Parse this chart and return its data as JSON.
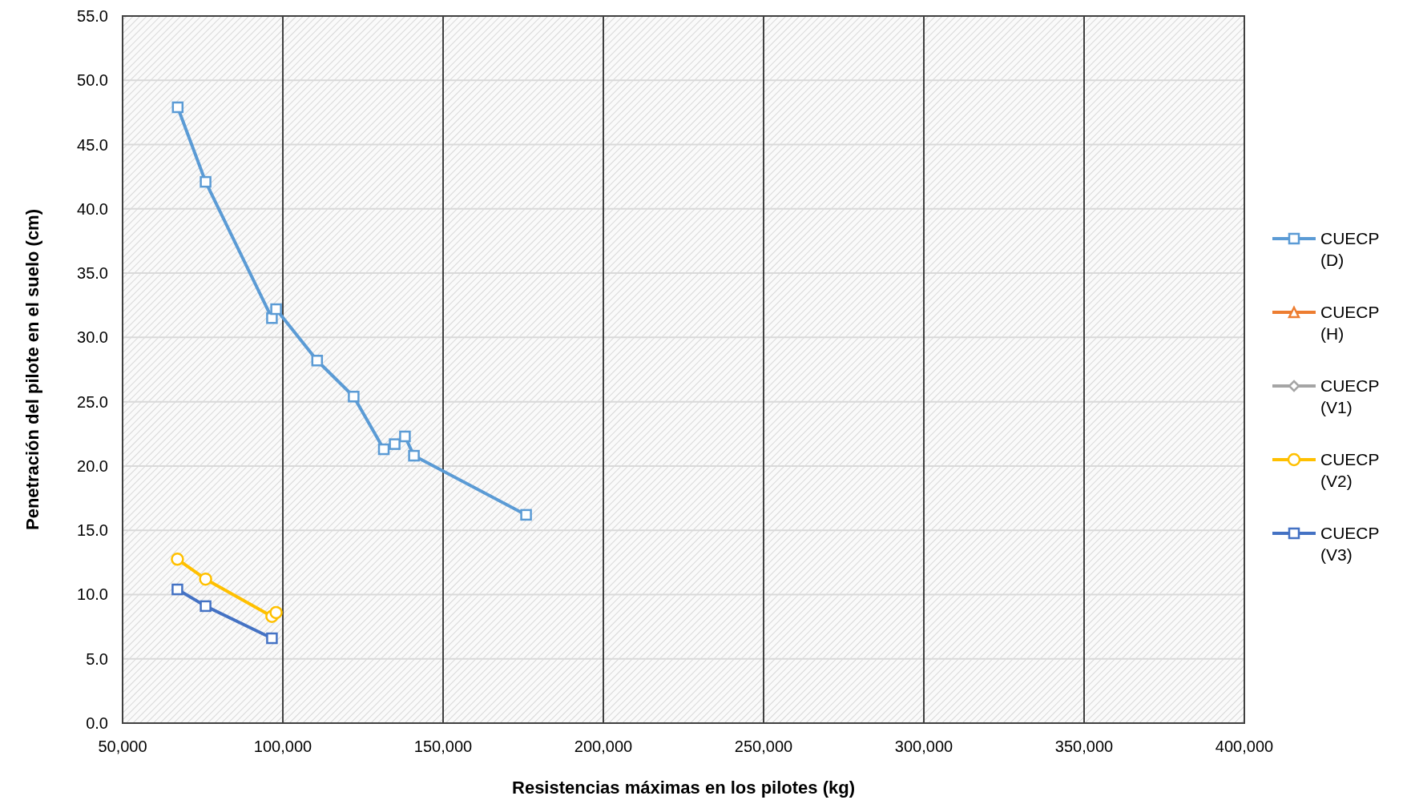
{
  "chart_data": {
    "type": "line",
    "xlabel": "Resistencias máximas en los pilotes (kg)",
    "ylabel": "Penetración del pilote en el suelo (cm)",
    "xlim": [
      50000,
      400000
    ],
    "ylim": [
      0,
      55
    ],
    "xticks": [
      {
        "value": 50000,
        "label": "50,000"
      },
      {
        "value": 100000,
        "label": "100,000"
      },
      {
        "value": 150000,
        "label": "150,000"
      },
      {
        "value": 200000,
        "label": "200,000"
      },
      {
        "value": 250000,
        "label": "250,000"
      },
      {
        "value": 300000,
        "label": "300,000"
      },
      {
        "value": 350000,
        "label": "350,000"
      },
      {
        "value": 400000,
        "label": "400,000"
      }
    ],
    "yticks": [
      {
        "value": 0,
        "label": "0.0"
      },
      {
        "value": 5,
        "label": "5.0"
      },
      {
        "value": 10,
        "label": "10.0"
      },
      {
        "value": 15,
        "label": "15.0"
      },
      {
        "value": 20,
        "label": "20.0"
      },
      {
        "value": 25,
        "label": "25.0"
      },
      {
        "value": 30,
        "label": "30.0"
      },
      {
        "value": 35,
        "label": "35.0"
      },
      {
        "value": 40,
        "label": "40.0"
      },
      {
        "value": 45,
        "label": "45.0"
      },
      {
        "value": 50,
        "label": "50.0"
      },
      {
        "value": 55,
        "label": "55.0"
      }
    ],
    "grid": true,
    "legend": "right",
    "line_style": "solid",
    "series": [
      {
        "name": "CUECP (D)",
        "color": "#5b9bd5",
        "marker": "square",
        "x": [
          67200,
          75900,
          96600,
          97900,
          110700,
          122100,
          131500,
          134900,
          138100,
          140900,
          175900
        ],
        "values": [
          47.9,
          42.1,
          31.5,
          32.2,
          28.2,
          25.4,
          21.3,
          21.7,
          22.3,
          20.8,
          16.2
        ]
      },
      {
        "name": "CUECP (H)",
        "color": "#ed7d31",
        "marker": "triangle"
      },
      {
        "name": "CUECP (V1)",
        "color": "#a5a5a5",
        "marker": "diamond"
      },
      {
        "name": "CUECP (V2)",
        "color": "#ffc000",
        "marker": "circle",
        "x": [
          67100,
          75900,
          96600,
          97900
        ],
        "values": [
          12.75,
          11.2,
          8.3,
          8.6
        ]
      },
      {
        "name": "CUECP (V3)",
        "color": "#4472c4",
        "marker": "square",
        "x": [
          67100,
          75900,
          96600
        ],
        "values": [
          10.4,
          9.1,
          6.6
        ]
      }
    ]
  }
}
